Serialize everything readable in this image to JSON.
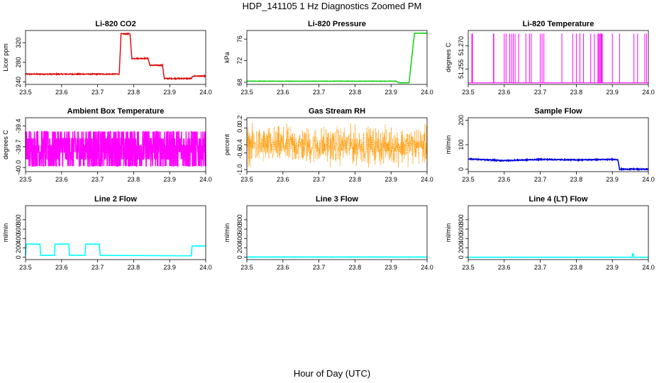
{
  "figure": {
    "title": "HDP_141105  1 Hz Diagnostics Zoomed PM",
    "xlabel": "Hour of Day (UTC)"
  },
  "chart_data": [
    {
      "id": "co2",
      "type": "line",
      "title": "Li-820 CO2",
      "ylabel": "Licor ppm",
      "color": "#dd0000",
      "xlim": [
        23.5,
        24.0
      ],
      "xticks": [
        23.5,
        23.6,
        23.7,
        23.8,
        23.9,
        24.0
      ],
      "ylim": [
        235,
        345
      ],
      "yticks": [
        240,
        280,
        320
      ],
      "noise": 1.0,
      "x": [
        23.5,
        23.76,
        23.765,
        23.79,
        23.795,
        23.84,
        23.845,
        23.88,
        23.885,
        23.96,
        23.965,
        24.0
      ],
      "y": [
        256,
        256,
        338,
        338,
        288,
        288,
        274,
        274,
        247,
        247,
        252,
        252
      ]
    },
    {
      "id": "pressure",
      "type": "line",
      "title": "Li-820 Pressure",
      "ylabel": "kPa",
      "color": "#00cc00",
      "xlim": [
        23.5,
        24.0
      ],
      "xticks": [
        23.5,
        23.6,
        23.7,
        23.8,
        23.9,
        24.0
      ],
      "ylim": [
        67.6,
        77.6
      ],
      "yticks": [
        68,
        72,
        76
      ],
      "noise": 0.03,
      "x": [
        23.5,
        23.915,
        23.92,
        23.95,
        23.965,
        23.97,
        24.0
      ],
      "y": [
        68.2,
        68.2,
        67.9,
        67.9,
        77.1,
        77.1,
        77.1
      ]
    },
    {
      "id": "licor-temp",
      "type": "spikes",
      "title": "Li-820 Temperature",
      "ylabel": "degrees C",
      "color": "#ff00ff",
      "xlim": [
        23.5,
        24.0
      ],
      "xticks": [
        23.5,
        23.6,
        23.7,
        23.8,
        23.9,
        24.0
      ],
      "ylim": [
        51.245,
        51.28
      ],
      "yticks": [
        51.255,
        51.27
      ],
      "base": 51.246,
      "top": 51.278,
      "spikes": [
        23.51,
        23.512,
        23.57,
        23.571,
        23.6,
        23.605,
        23.615,
        23.62,
        23.625,
        23.63,
        23.64,
        23.66,
        23.67,
        23.675,
        23.7,
        23.705,
        23.71,
        23.76,
        23.79,
        23.8,
        23.81,
        23.82,
        23.84,
        23.85,
        23.86,
        23.862,
        23.865,
        23.868,
        23.87,
        23.872,
        23.9,
        23.92,
        23.96,
        23.97,
        23.99,
        23.995
      ]
    },
    {
      "id": "box-temp",
      "type": "noise",
      "title": "Ambient Box Temperature",
      "ylabel": "degrees C",
      "color": "#ff00ff",
      "xlim": [
        23.5,
        24.0
      ],
      "xticks": [
        23.5,
        23.6,
        23.7,
        23.8,
        23.9,
        24.0
      ],
      "ylim": [
        -40.06,
        -39.28
      ],
      "yticks": [
        -40.0,
        -39.7,
        -39.4
      ],
      "mean": -39.78,
      "spread": 0.2,
      "levels": [
        -39.98,
        -39.88,
        -39.78,
        -39.68,
        -39.58,
        -39.48
      ]
    },
    {
      "id": "gas-rh",
      "type": "noise",
      "title": "Gas Stream RH",
      "ylabel": "percent",
      "color": "#ff9900",
      "xlim": [
        23.5,
        24.0
      ],
      "xticks": [
        23.5,
        23.6,
        23.7,
        23.8,
        23.9,
        24.0
      ],
      "ylim": [
        -1.05,
        0.25
      ],
      "yticks": [
        -1.0,
        -0.6,
        -0.4,
        0.0,
        0.2
      ],
      "mean": -0.42,
      "spread": 0.3
    },
    {
      "id": "sample-flow",
      "type": "line",
      "title": "Sample Flow",
      "ylabel": "ml/min",
      "color": "#0000dd",
      "xlim": [
        23.5,
        24.0
      ],
      "xticks": [
        23.5,
        23.6,
        23.7,
        23.8,
        23.9,
        24.0
      ],
      "ylim": [
        -10,
        210
      ],
      "yticks": [
        0,
        100,
        200
      ],
      "noise": 2.0,
      "x": [
        23.5,
        23.55,
        23.6,
        23.7,
        23.8,
        23.91,
        23.915,
        23.92,
        24.0
      ],
      "y": [
        42,
        38,
        35,
        40,
        38,
        40,
        40,
        0,
        0
      ]
    },
    {
      "id": "line2-flow",
      "type": "line",
      "title": "Line 2 Flow",
      "ylabel": "ml/min",
      "color": "#00ffff",
      "xlim": [
        23.5,
        24.0
      ],
      "xticks": [
        23.5,
        23.6,
        23.7,
        23.8,
        23.9,
        24.0
      ],
      "ylim": [
        -50,
        1100
      ],
      "yticks": [
        0,
        200,
        400,
        600,
        800
      ],
      "noise": 0,
      "x": [
        23.5,
        23.502,
        23.54,
        23.542,
        23.58,
        23.582,
        23.62,
        23.622,
        23.665,
        23.667,
        23.705,
        23.707,
        23.96,
        23.962,
        24.0
      ],
      "y": [
        40,
        280,
        280,
        40,
        40,
        280,
        280,
        40,
        40,
        280,
        280,
        40,
        30,
        240,
        240
      ]
    },
    {
      "id": "line3-flow",
      "type": "line",
      "title": "Line 3 Flow",
      "ylabel": "ml/min",
      "color": "#00ffff",
      "xlim": [
        23.5,
        24.0
      ],
      "xticks": [
        23.5,
        23.6,
        23.7,
        23.8,
        23.9,
        24.0
      ],
      "ylim": [
        -50,
        1100
      ],
      "yticks": [
        0,
        200,
        400,
        600,
        800
      ],
      "noise": 3,
      "x": [
        23.5,
        24.0
      ],
      "y": [
        5,
        5
      ]
    },
    {
      "id": "line4-flow",
      "type": "line",
      "title": "Line 4 (LT) Flow",
      "ylabel": "ml/min",
      "color": "#00ffff",
      "xlim": [
        23.5,
        24.0
      ],
      "xticks": [
        23.5,
        23.6,
        23.7,
        23.8,
        23.9,
        24.0
      ],
      "ylim": [
        -50,
        1100
      ],
      "yticks": [
        0,
        200,
        400,
        600,
        800
      ],
      "noise": 0,
      "x": [
        23.5,
        23.955,
        23.956,
        23.958,
        23.96,
        24.0
      ],
      "y": [
        0,
        0,
        70,
        70,
        0,
        0
      ]
    }
  ]
}
